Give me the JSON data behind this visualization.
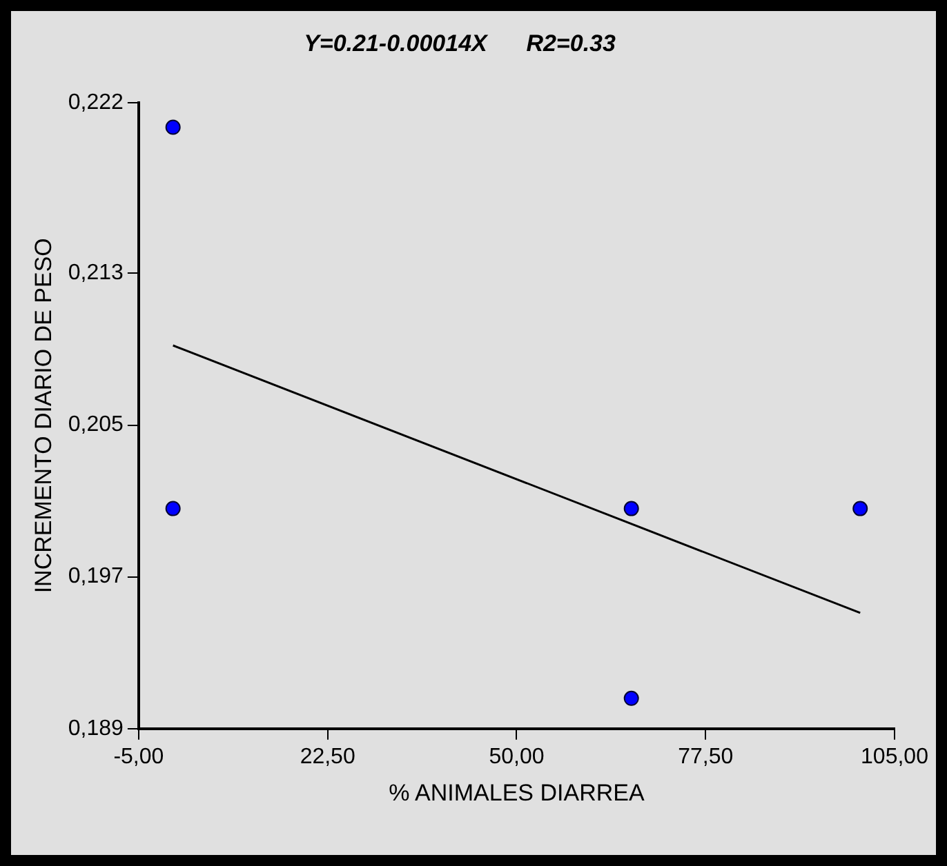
{
  "chart_data": {
    "type": "scatter",
    "title": "Y=0.21-0.00014X      R2=0.33",
    "xlabel": "% ANIMALES DIARREA",
    "ylabel": "INCREMENTO DIARIO DE PESO",
    "xlim": [
      -5,
      105
    ],
    "xticks": [
      {
        "value": -5,
        "label": "-5,00"
      },
      {
        "value": 22.5,
        "label": "22,50"
      },
      {
        "value": 50,
        "label": "50,00"
      },
      {
        "value": 77.5,
        "label": "77,50"
      },
      {
        "value": 105,
        "label": "105,00"
      }
    ],
    "ylim": [
      0.189,
      0.222
    ],
    "yticks": [
      {
        "value": 0.189,
        "label": "0,189"
      },
      {
        "value": 0.197,
        "label": "0,197"
      },
      {
        "value": 0.205,
        "label": "0,205"
      },
      {
        "value": 0.213,
        "label": "0,213"
      },
      {
        "value": 0.222,
        "label": "0,222"
      }
    ],
    "grid": false,
    "legend": false,
    "series": [
      {
        "color": "#0000ff",
        "marker": "circle",
        "x": [
          0,
          0,
          66.7,
          66.7,
          100
        ],
        "values": [
          0.2207,
          0.2006,
          0.2006,
          0.1906,
          0.2006
        ]
      },
      {
        "type": "line",
        "color": "#000000",
        "line_style": "solid",
        "marker": "none",
        "x": [
          0,
          100
        ],
        "values": [
          0.2092,
          0.1951
        ]
      }
    ]
  }
}
